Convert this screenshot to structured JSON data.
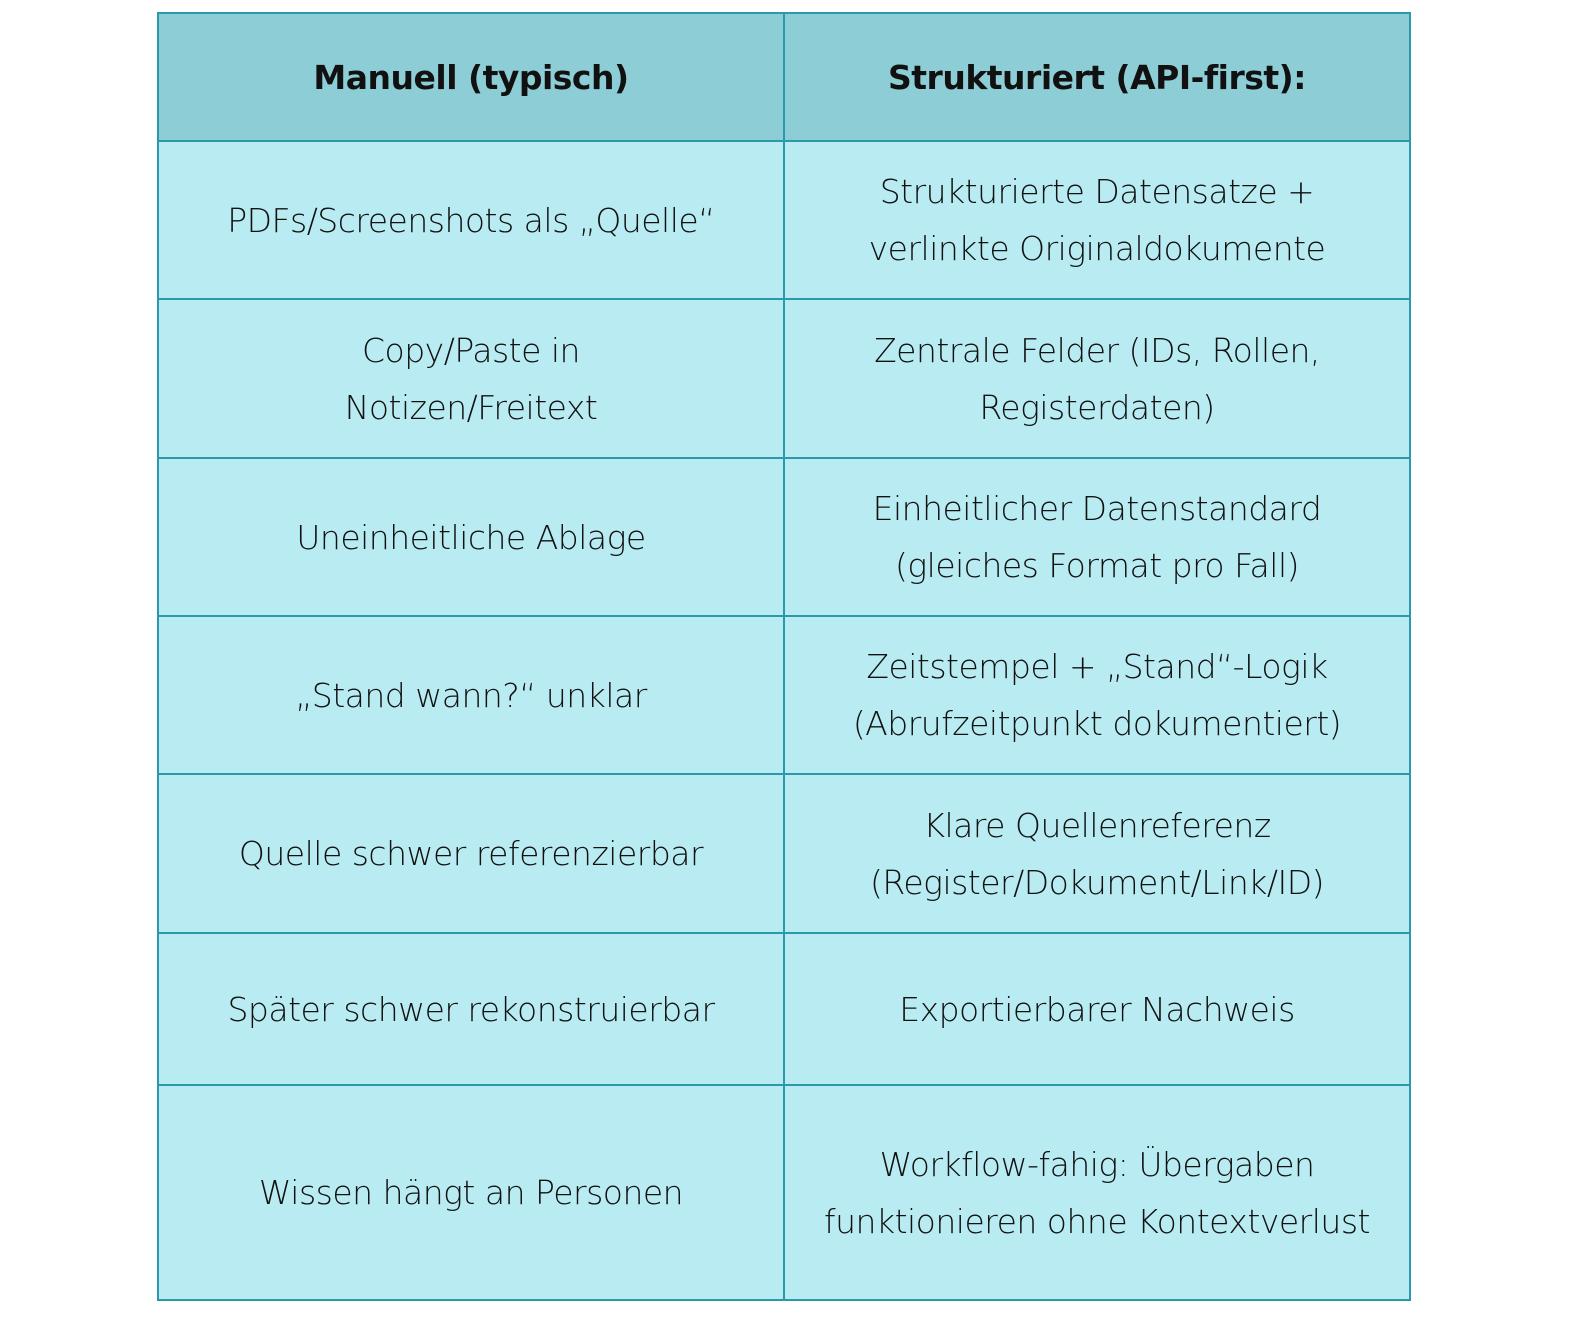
{
  "table": {
    "headers": [
      "Manuell (typisch)",
      "Strukturiert (API-first):"
    ],
    "rows": [
      [
        "PDFs/Screenshots als „Quelle“",
        "Strukturierte Datensatze + verlinkte Originaldokumente"
      ],
      [
        "Copy/Paste in Notizen/Freitext",
        "Zentrale Felder (IDs, Rollen, Registerdaten)"
      ],
      [
        "Uneinheitliche Ablage",
        "Einheitlicher Datenstandard (gleiches Format pro Fall)"
      ],
      [
        "„Stand wann?“ unklar",
        "Zeitstempel + „Stand“-Logik (Abrufzeitpunkt dokumentiert)"
      ],
      [
        "Quelle schwer referenzierbar",
        "Klare Quellenreferenz (Register/Dokument/Link/ID)"
      ],
      [
        "Später schwer rekonstruierbar",
        "Exportierbarer Nachweis"
      ],
      [
        "Wissen hängt an Personen",
        "Workflow-fahig: Übergaben funktionieren ohne Kontextverlust"
      ]
    ]
  },
  "colors": {
    "header_bg": "#8ccdd6",
    "cell_bg": "#b8ecf2",
    "border": "#2a9aa8"
  }
}
